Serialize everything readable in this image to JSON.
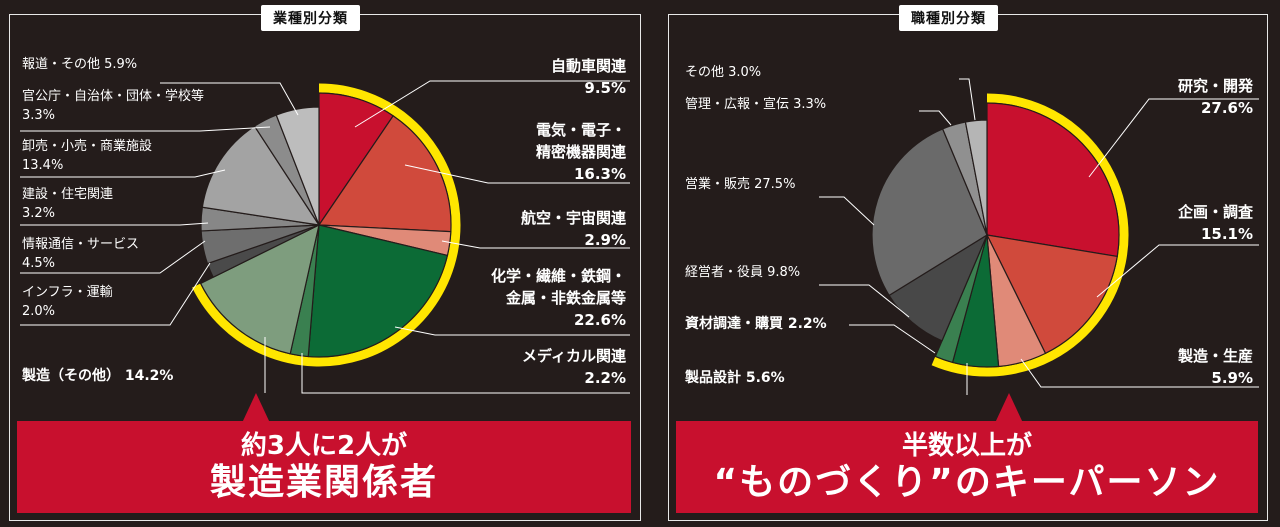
{
  "chart_data": [
    {
      "type": "pie",
      "title": "業種別分類",
      "slices": [
        {
          "label": "自動車関連",
          "value": 9.5,
          "display": "9.5%",
          "color": "#c8102e",
          "manufacturing": true
        },
        {
          "label": "電気・電子・精密機器関連",
          "value": 16.3,
          "display": "16.3%",
          "color": "#d04a3c",
          "manufacturing": true
        },
        {
          "label": "航空・宇宙関連",
          "value": 2.9,
          "display": "2.9%",
          "color": "#e08a78",
          "manufacturing": true
        },
        {
          "label": "化学・繊維・鉄鋼・金属・非鉄金属等",
          "value": 22.6,
          "display": "22.6%",
          "color": "#0c6b36",
          "manufacturing": true
        },
        {
          "label": "メディカル関連",
          "value": 2.2,
          "display": "2.2%",
          "color": "#3a8050",
          "manufacturing": true
        },
        {
          "label": "製造（その他）",
          "value": 14.2,
          "display": "14.2%",
          "color": "#7e9d7e",
          "manufacturing": true
        },
        {
          "label": "インフラ・運輸",
          "value": 2.0,
          "display": "2.0%",
          "color": "#4a4a4a",
          "manufacturing": false
        },
        {
          "label": "情報通信・サービス",
          "value": 4.5,
          "display": "4.5%",
          "color": "#6e6e6e",
          "manufacturing": false
        },
        {
          "label": "建設・住宅関連",
          "value": 3.2,
          "display": "3.2%",
          "color": "#878787",
          "manufacturing": false
        },
        {
          "label": "卸売・小売・商業施設",
          "value": 13.4,
          "display": "13.4%",
          "color": "#a3a3a3",
          "manufacturing": false
        },
        {
          "label": "官公庁・自治体・団体・学校等",
          "value": 3.3,
          "display": "3.3%",
          "color": "#8c8c8c",
          "manufacturing": false
        },
        {
          "label": "報道・その他",
          "value": 5.9,
          "display": "5.9%",
          "color": "#bdbdbd",
          "manufacturing": false
        }
      ],
      "callout_line1": "約3人に2人が",
      "callout_line2": "製造業関係者"
    },
    {
      "type": "pie",
      "title": "職種別分類",
      "slices": [
        {
          "label": "研究・開発",
          "value": 27.6,
          "display": "27.6%",
          "color": "#c8102e",
          "manufacturing": true
        },
        {
          "label": "企画・調査",
          "value": 15.1,
          "display": "15.1%",
          "color": "#d04a3c",
          "manufacturing": true
        },
        {
          "label": "製造・生産",
          "value": 5.9,
          "display": "5.9%",
          "color": "#e08a78",
          "manufacturing": true
        },
        {
          "label": "製品設計",
          "value": 5.6,
          "display": "5.6%",
          "color": "#0c6b36",
          "manufacturing": true
        },
        {
          "label": "資材調達・購買",
          "value": 2.2,
          "display": "2.2%",
          "color": "#3a8050",
          "manufacturing": true
        },
        {
          "label": "経営者・役員",
          "value": 9.8,
          "display": "9.8%",
          "color": "#484848",
          "manufacturing": false
        },
        {
          "label": "営業・販売",
          "value": 27.5,
          "display": "27.5%",
          "color": "#6a6a6a",
          "manufacturing": false
        },
        {
          "label": "管理・広報・宣伝",
          "value": 3.3,
          "display": "3.3%",
          "color": "#909090",
          "manufacturing": false
        },
        {
          "label": "その他",
          "value": 3.0,
          "display": "3.0%",
          "color": "#b5b5b5",
          "manufacturing": false
        }
      ],
      "callout_line1": "半数以上が",
      "callout_line2": "“ものづくり”のキーパーソン"
    }
  ],
  "colors": {
    "highlight_ring": "#ffe600",
    "banner": "#c8102e",
    "leader": "#ffffff"
  },
  "left_labels": {
    "s0": {
      "name": "自動車関連",
      "val": "9.5%"
    },
    "s1": {
      "name1": "電気・電子・",
      "name2": "精密機器関連",
      "val": "16.3%"
    },
    "s2": {
      "name": "航空・宇宙関連",
      "val": "2.9%"
    },
    "s3": {
      "name1": "化学・繊維・鉄鋼・",
      "name2": "金属・非鉄金属等",
      "val": "22.6%"
    },
    "s4": {
      "name": "メディカル関連",
      "val": "2.2%"
    },
    "s5": {
      "text": "製造（その他） 14.2%"
    },
    "s6": {
      "name": "インフラ・運輸",
      "val": "2.0%"
    },
    "s7": {
      "name": "情報通信・サービス",
      "val": "4.5%"
    },
    "s8": {
      "name": "建設・住宅関連",
      "val": "3.2%"
    },
    "s9": {
      "name": "卸売・小売・商業施設",
      "val": "13.4%"
    },
    "s10": {
      "name": "官公庁・自治体・団体・学校等",
      "val": "3.3%"
    },
    "s11": {
      "text": "報道・その他 5.9%"
    }
  },
  "right_labels": {
    "s0": {
      "name": "研究・開発",
      "val": "27.6%"
    },
    "s1": {
      "name": "企画・調査",
      "val": "15.1%"
    },
    "s2": {
      "name": "製造・生産",
      "val": "5.9%"
    },
    "s3": {
      "text": "製品設計 5.6%"
    },
    "s4": {
      "text": "資材調達・購買 2.2%"
    },
    "s5": {
      "text": "経営者・役員 9.8%"
    },
    "s6": {
      "text": "営業・販売 27.5%"
    },
    "s7": {
      "text": "管理・広報・宣伝 3.3%"
    },
    "s8": {
      "text": "その他 3.0%"
    }
  }
}
